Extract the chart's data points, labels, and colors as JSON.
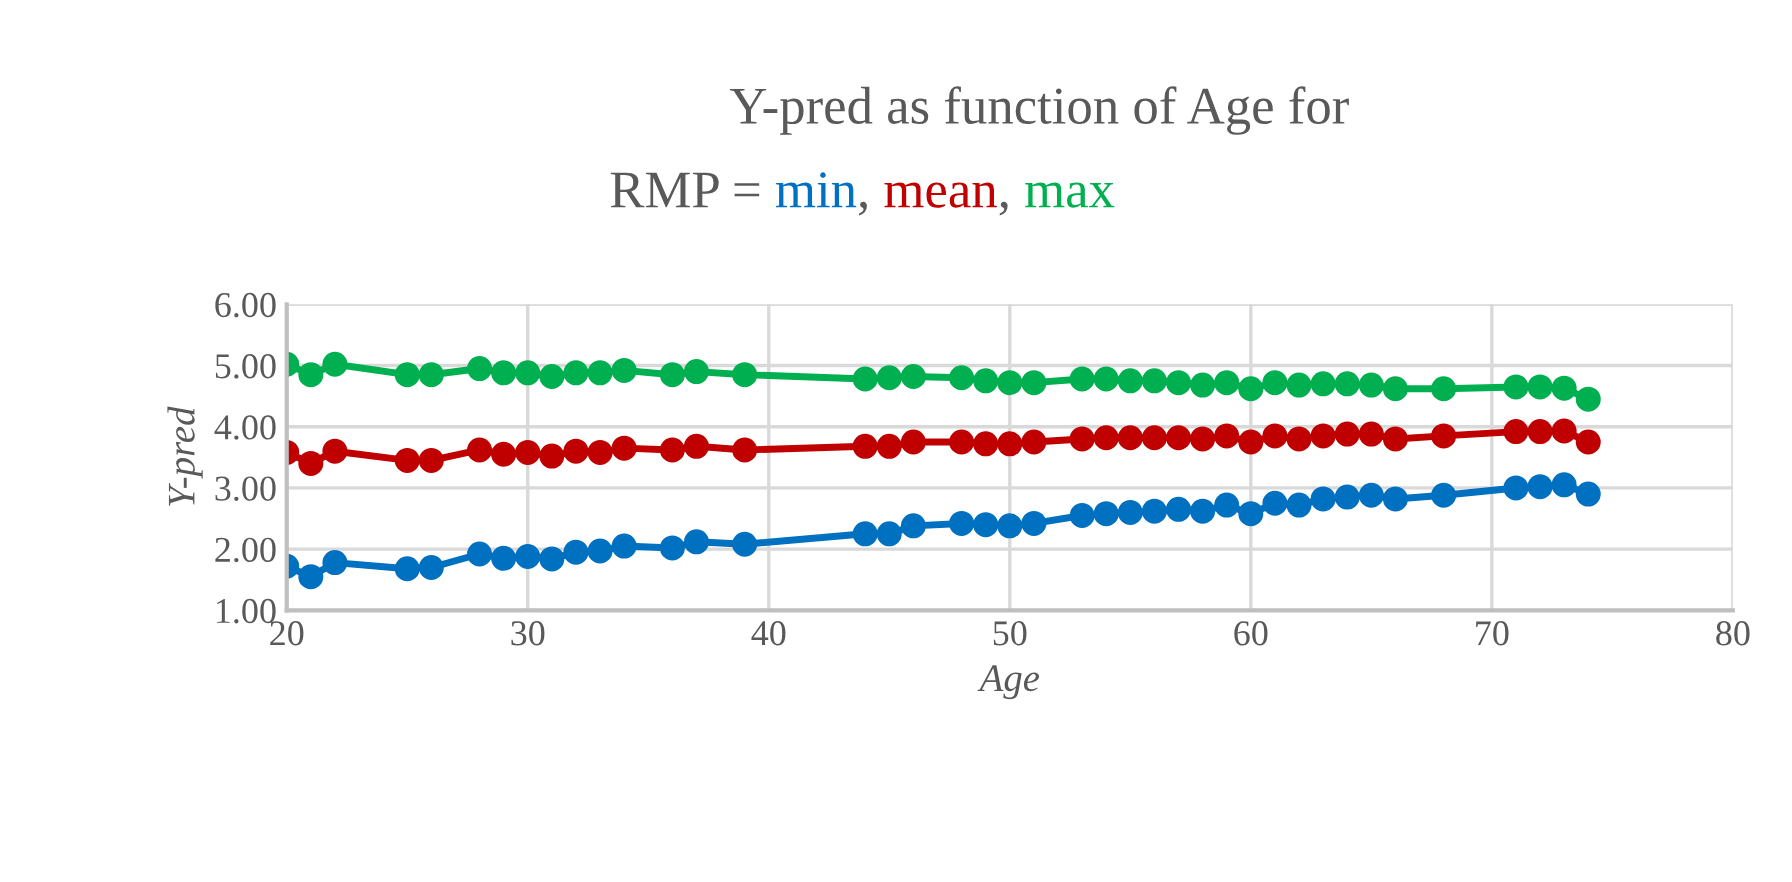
{
  "chart_data": {
    "type": "line",
    "title": "Y-pred as function of Age for\nRMP =",
    "annotations": [
      ",",
      ","
    ],
    "xlabel": "Age",
    "ylabel": "Y-pred",
    "x": [
      20,
      21,
      22,
      25,
      26,
      28,
      29,
      30,
      31,
      32,
      33,
      34,
      36,
      37,
      39,
      44,
      45,
      46,
      48,
      49,
      50,
      51,
      53,
      54,
      55,
      56,
      57,
      58,
      59,
      60,
      61,
      62,
      63,
      64,
      65,
      66,
      68,
      71,
      72,
      73,
      74
    ],
    "series": [
      {
        "name": "min",
        "color": "#0070c0",
        "values": [
          1.72,
          1.55,
          1.78,
          1.68,
          1.7,
          1.92,
          1.85,
          1.88,
          1.84,
          1.95,
          1.97,
          2.05,
          2.02,
          2.12,
          2.08,
          2.25,
          2.25,
          2.38,
          2.42,
          2.4,
          2.38,
          2.42,
          2.55,
          2.58,
          2.6,
          2.62,
          2.65,
          2.62,
          2.72,
          2.58,
          2.75,
          2.72,
          2.82,
          2.85,
          2.88,
          2.82,
          2.88,
          3.0,
          3.02,
          3.05,
          2.9
        ]
      },
      {
        "name": "mean",
        "color": "#c00000",
        "values": [
          3.58,
          3.4,
          3.6,
          3.45,
          3.45,
          3.62,
          3.55,
          3.58,
          3.52,
          3.6,
          3.58,
          3.65,
          3.62,
          3.68,
          3.62,
          3.68,
          3.68,
          3.75,
          3.75,
          3.72,
          3.72,
          3.75,
          3.8,
          3.82,
          3.82,
          3.82,
          3.82,
          3.8,
          3.85,
          3.75,
          3.85,
          3.8,
          3.85,
          3.88,
          3.88,
          3.8,
          3.85,
          3.92,
          3.92,
          3.93,
          3.75
        ]
      },
      {
        "name": "max",
        "color": "#00b050",
        "values": [
          5.02,
          4.85,
          5.02,
          4.85,
          4.85,
          4.95,
          4.88,
          4.88,
          4.82,
          4.88,
          4.88,
          4.92,
          4.85,
          4.9,
          4.85,
          4.78,
          4.8,
          4.82,
          4.8,
          4.75,
          4.72,
          4.72,
          4.78,
          4.78,
          4.75,
          4.75,
          4.72,
          4.68,
          4.72,
          4.62,
          4.72,
          4.68,
          4.7,
          4.7,
          4.68,
          4.62,
          4.62,
          4.65,
          4.65,
          4.63,
          4.45
        ]
      }
    ],
    "xlim": [
      20,
      80
    ],
    "xticks": [
      20,
      30,
      40,
      50,
      60,
      70,
      80
    ],
    "ylim": [
      1,
      6
    ],
    "yticks": [
      {
        "value": 1,
        "label": "1.00"
      },
      {
        "value": 2,
        "label": "2.00"
      },
      {
        "value": 3,
        "label": "3.00"
      },
      {
        "value": 4,
        "label": "4.00"
      },
      {
        "value": 5,
        "label": "5.00"
      },
      {
        "value": 6,
        "label": "6.00"
      }
    ],
    "grid": true,
    "legend": false,
    "marker": "circle",
    "line_style": "solid"
  }
}
